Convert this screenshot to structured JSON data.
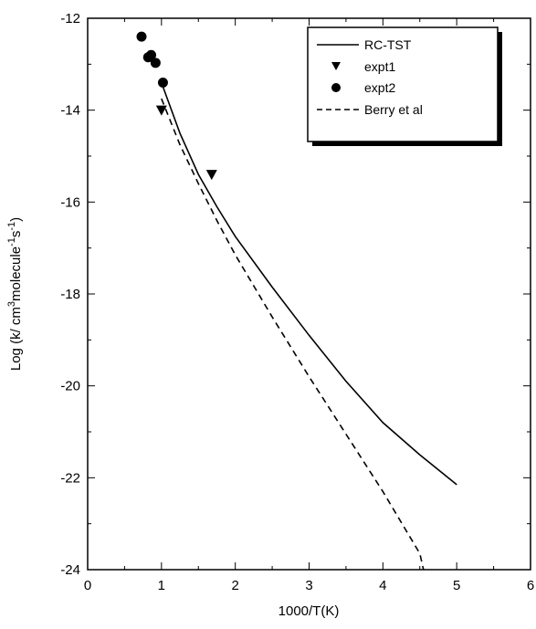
{
  "chart_data": {
    "type": "line",
    "xlabel": "1000/T(K)",
    "ylabel": {
      "prefix": "Log (k/ cm",
      "sup1": "3",
      "mid": "molecule",
      "sup2": "-1",
      "mid2": "s",
      "sup3": "-1",
      "suffix": ")"
    },
    "xlim": [
      0,
      6
    ],
    "ylim": [
      -24,
      -12
    ],
    "xticks": [
      0,
      1,
      2,
      3,
      4,
      5,
      6
    ],
    "yticks": [
      -24,
      -22,
      -20,
      -18,
      -16,
      -14,
      -12
    ],
    "grid": false,
    "legend_position": "top-right",
    "series": [
      {
        "name": "RC-TST",
        "kind": "line",
        "style": "solid",
        "x": [
          1.0,
          1.25,
          1.5,
          1.75,
          2.0,
          2.5,
          3.0,
          3.5,
          4.0,
          4.5,
          5.0
        ],
        "y": [
          -13.4,
          -14.5,
          -15.4,
          -16.1,
          -16.75,
          -17.85,
          -18.9,
          -19.9,
          -20.8,
          -21.5,
          -22.15
        ]
      },
      {
        "name": "expt1",
        "kind": "scatter",
        "marker": "triangle-down",
        "x": [
          1.0,
          1.68
        ],
        "y": [
          -14.0,
          -15.4
        ]
      },
      {
        "name": "expt2",
        "kind": "scatter",
        "marker": "circle",
        "x": [
          0.73,
          0.82,
          0.86,
          0.92,
          1.02
        ],
        "y": [
          -12.4,
          -12.85,
          -12.8,
          -12.97,
          -13.4
        ]
      },
      {
        "name": "Berry et al",
        "kind": "line",
        "style": "dashed",
        "x": [
          1.0,
          1.25,
          1.5,
          1.75,
          2.0,
          2.5,
          3.0,
          3.5,
          4.0,
          4.5,
          4.55
        ],
        "y": [
          -13.75,
          -14.75,
          -15.6,
          -16.4,
          -17.15,
          -18.5,
          -19.8,
          -21.05,
          -22.3,
          -23.65,
          -24.0
        ]
      }
    ]
  }
}
